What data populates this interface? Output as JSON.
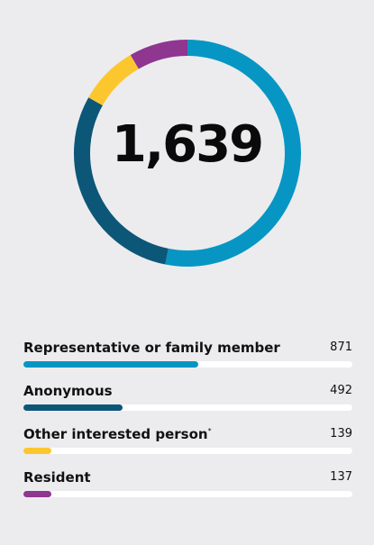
{
  "chart_data": {
    "type": "pie",
    "variant": "donut",
    "total_label": "1,639",
    "categories": [
      "Representative or family member",
      "Anonymous",
      "Other interested person",
      "Resident"
    ],
    "values": [
      871,
      492,
      139,
      137
    ],
    "value_labels": [
      "871",
      "492",
      "139",
      "137"
    ],
    "footnote_marks": [
      "",
      "",
      "*",
      ""
    ],
    "colors": [
      "#0796c4",
      "#0c5778",
      "#fcc72e",
      "#8e3690"
    ],
    "legend_placement": "bottom",
    "start_angle_deg": 0,
    "direction": "clockwise"
  }
}
